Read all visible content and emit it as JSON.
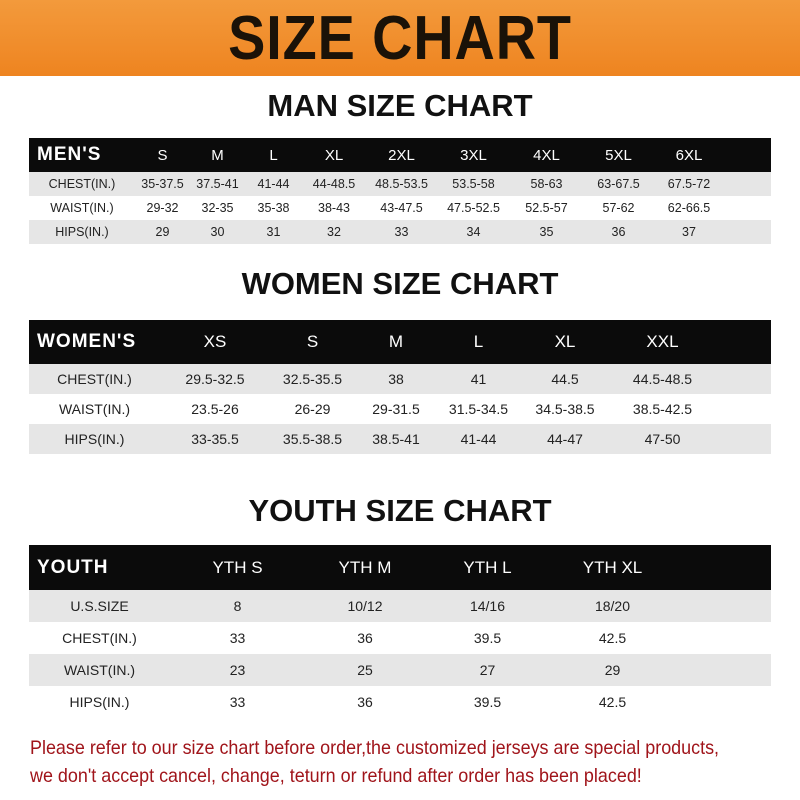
{
  "title": "SIZE CHART",
  "men": {
    "title": "MAN SIZE CHART",
    "header": [
      "MEN'S",
      "S",
      "M",
      "L",
      "XL",
      "2XL",
      "3XL",
      "4XL",
      "5XL",
      "6XL"
    ],
    "rows": [
      [
        "CHEST(IN.)",
        "35-37.5",
        "37.5-41",
        "41-44",
        "44-48.5",
        "48.5-53.5",
        "53.5-58",
        "58-63",
        "63-67.5",
        "67.5-72"
      ],
      [
        "WAIST(IN.)",
        "29-32",
        "32-35",
        "35-38",
        "38-43",
        "43-47.5",
        "47.5-52.5",
        "52.5-57",
        "57-62",
        "62-66.5"
      ],
      [
        "HIPS(IN.)",
        "29",
        "30",
        "31",
        "32",
        "33",
        "34",
        "35",
        "36",
        "37"
      ]
    ]
  },
  "women": {
    "title": "WOMEN SIZE CHART",
    "header": [
      "WOMEN'S",
      "XS",
      "S",
      "M",
      "L",
      "XL",
      "XXL"
    ],
    "rows": [
      [
        "CHEST(IN.)",
        "29.5-32.5",
        "32.5-35.5",
        "38",
        "41",
        "44.5",
        "44.5-48.5"
      ],
      [
        "WAIST(IN.)",
        "23.5-26",
        "26-29",
        "29-31.5",
        "31.5-34.5",
        "34.5-38.5",
        "38.5-42.5"
      ],
      [
        "HIPS(IN.)",
        "33-35.5",
        "35.5-38.5",
        "38.5-41",
        "41-44",
        "44-47",
        "47-50"
      ]
    ]
  },
  "youth": {
    "title": "YOUTH SIZE CHART",
    "header": [
      "YOUTH",
      "YTH S",
      "YTH M",
      "YTH L",
      "YTH XL"
    ],
    "rows": [
      [
        "U.S.SIZE",
        "8",
        "10/12",
        "14/16",
        "18/20"
      ],
      [
        "CHEST(IN.)",
        "33",
        "36",
        "39.5",
        "42.5"
      ],
      [
        "WAIST(IN.)",
        "23",
        "25",
        "27",
        "29"
      ],
      [
        "HIPS(IN.)",
        "33",
        "36",
        "39.5",
        "42.5"
      ]
    ]
  },
  "note": "Please refer to our size chart before order,the customized jerseys are special products, we don't accept cancel, change, teturn or refund after order has been placed!",
  "colors": {
    "banner": "#f08a24",
    "header_row": "#0b0b0b",
    "stripe": "#e6e6e6",
    "note": "#a0141a"
  }
}
